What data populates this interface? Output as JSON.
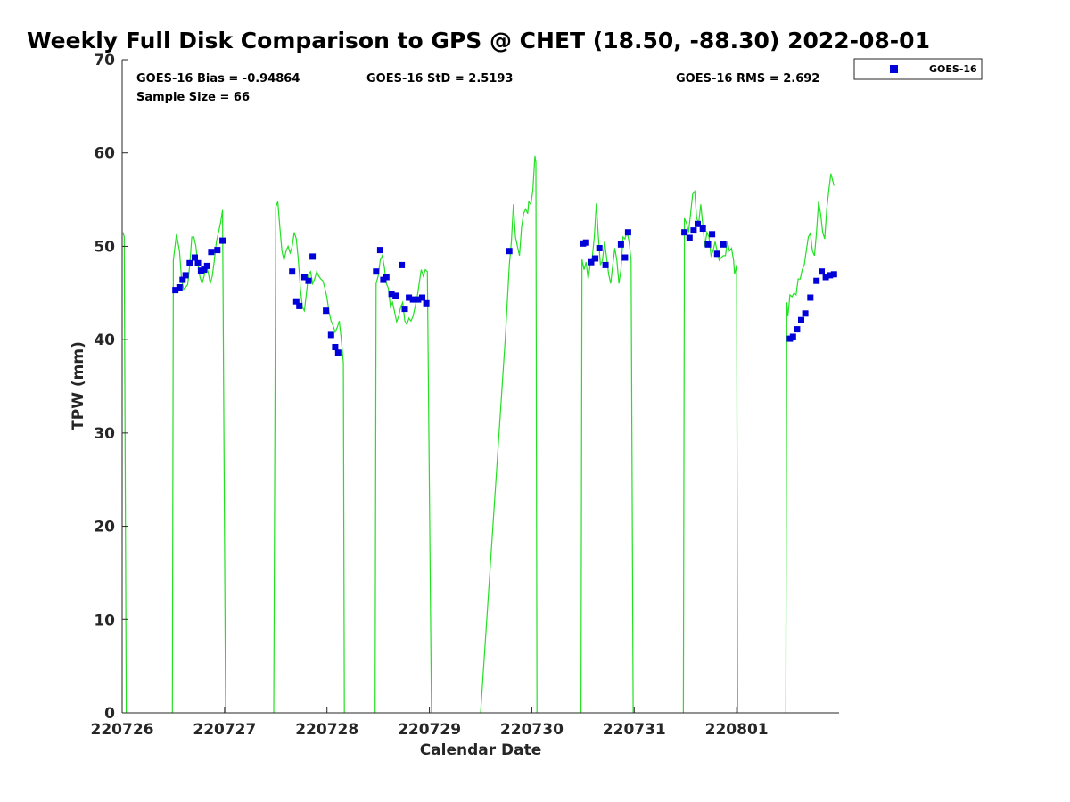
{
  "chart_data": {
    "type": "scatter",
    "title": "Weekly Full Disk Comparison to GPS @ CHET (18.50, -88.30) 2022-08-01",
    "xlabel": "Calendar Date",
    "ylabel": "TPW (mm)",
    "xlim": [
      0,
      7.0
    ],
    "ylim": [
      0,
      70
    ],
    "x_ticks": [
      {
        "value": 0,
        "label": "220726"
      },
      {
        "value": 1,
        "label": "220727"
      },
      {
        "value": 2,
        "label": "220728"
      },
      {
        "value": 3,
        "label": "220729"
      },
      {
        "value": 4,
        "label": "220730"
      },
      {
        "value": 5,
        "label": "220731"
      },
      {
        "value": 6,
        "label": "220801"
      }
    ],
    "y_ticks": [
      {
        "value": 0,
        "label": "0"
      },
      {
        "value": 10,
        "label": "10"
      },
      {
        "value": 20,
        "label": "20"
      },
      {
        "value": 30,
        "label": "30"
      },
      {
        "value": 40,
        "label": "40"
      },
      {
        "value": 50,
        "label": "50"
      },
      {
        "value": 60,
        "label": "60"
      },
      {
        "value": 70,
        "label": "70"
      }
    ],
    "stats": {
      "bias": "GOES-16 Bias = -0.94864",
      "std": "GOES-16 StD = 2.5193",
      "rms": "GOES-16 RMS = 2.692",
      "sample": "Sample Size = 66"
    },
    "legend": {
      "position": "top-right",
      "label": "GOES-16"
    },
    "colors": {
      "goes": "#0000d8",
      "gps": "#22e022",
      "axis": "#262626"
    },
    "gps_series": {
      "name": "GPS",
      "segments": [
        [
          [
            -0.02,
            51.5
          ],
          [
            0.02,
            51.0
          ],
          [
            0.04,
            0
          ]
        ],
        [
          [
            0.49,
            0
          ],
          [
            0.5,
            48.5
          ],
          [
            0.53,
            51.3
          ],
          [
            0.56,
            49.5
          ],
          [
            0.58,
            46.5
          ],
          [
            0.6,
            45.4
          ],
          [
            0.62,
            45.6
          ],
          [
            0.64,
            45.9
          ],
          [
            0.66,
            48.0
          ],
          [
            0.68,
            51.0
          ],
          [
            0.7,
            51.0
          ],
          [
            0.72,
            50.0
          ],
          [
            0.74,
            48.0
          ],
          [
            0.76,
            46.7
          ],
          [
            0.78,
            46.0
          ],
          [
            0.8,
            46.8
          ],
          [
            0.82,
            48.0
          ],
          [
            0.84,
            47.2
          ],
          [
            0.86,
            46.0
          ],
          [
            0.88,
            46.8
          ],
          [
            0.9,
            48.5
          ],
          [
            0.92,
            50.5
          ],
          [
            0.94,
            51.5
          ],
          [
            0.96,
            52.5
          ],
          [
            0.98,
            53.9
          ],
          [
            1.01,
            0
          ]
        ],
        [
          [
            1.48,
            0
          ],
          [
            1.5,
            54.2
          ],
          [
            1.52,
            54.8
          ],
          [
            1.54,
            52.0
          ],
          [
            1.56,
            49.5
          ],
          [
            1.58,
            48.5
          ],
          [
            1.6,
            49.5
          ],
          [
            1.62,
            50.0
          ],
          [
            1.64,
            49.3
          ],
          [
            1.66,
            50.0
          ],
          [
            1.68,
            51.5
          ],
          [
            1.7,
            50.8
          ],
          [
            1.72,
            48.5
          ],
          [
            1.74,
            45.5
          ],
          [
            1.76,
            43.5
          ],
          [
            1.78,
            43.1
          ],
          [
            1.8,
            45.0
          ],
          [
            1.82,
            47.0
          ],
          [
            1.84,
            47.3
          ],
          [
            1.86,
            46.0
          ],
          [
            1.88,
            46.5
          ],
          [
            1.9,
            47.3
          ],
          [
            1.92,
            46.8
          ],
          [
            1.94,
            46.5
          ],
          [
            1.96,
            46.3
          ],
          [
            1.98,
            45.5
          ],
          [
            2.0,
            44.5
          ],
          [
            2.02,
            43.0
          ],
          [
            2.04,
            42.0
          ],
          [
            2.06,
            41.5
          ],
          [
            2.08,
            40.8
          ],
          [
            2.1,
            41.3
          ],
          [
            2.12,
            42.0
          ],
          [
            2.14,
            40.0
          ],
          [
            2.16,
            37.5
          ],
          [
            2.17,
            0
          ]
        ],
        [
          [
            2.47,
            0
          ],
          [
            2.48,
            46.0
          ],
          [
            2.5,
            46.8
          ],
          [
            2.52,
            48.5
          ],
          [
            2.54,
            49.0
          ],
          [
            2.56,
            47.8
          ],
          [
            2.58,
            46.0
          ],
          [
            2.6,
            45.5
          ],
          [
            2.62,
            43.5
          ],
          [
            2.64,
            44.0
          ],
          [
            2.66,
            43.0
          ],
          [
            2.68,
            41.9
          ],
          [
            2.7,
            42.5
          ],
          [
            2.72,
            43.5
          ],
          [
            2.74,
            44.0
          ],
          [
            2.76,
            42.0
          ],
          [
            2.78,
            41.6
          ],
          [
            2.8,
            42.3
          ],
          [
            2.82,
            42.0
          ],
          [
            2.84,
            42.5
          ],
          [
            2.86,
            43.5
          ],
          [
            2.88,
            44.5
          ],
          [
            2.9,
            46.0
          ],
          [
            2.92,
            47.5
          ],
          [
            2.94,
            46.8
          ],
          [
            2.96,
            47.5
          ],
          [
            2.98,
            47.3
          ],
          [
            3.02,
            0
          ]
        ],
        [
          [
            3.5,
            0
          ],
          [
            3.62,
            20.0
          ],
          [
            3.74,
            40.0
          ],
          [
            3.78,
            48.0
          ],
          [
            3.8,
            50.5
          ],
          [
            3.82,
            54.5
          ],
          [
            3.84,
            51.0
          ],
          [
            3.86,
            50.0
          ],
          [
            3.88,
            49.0
          ],
          [
            3.9,
            52.0
          ],
          [
            3.92,
            53.5
          ],
          [
            3.94,
            54.0
          ],
          [
            3.96,
            53.5
          ],
          [
            3.97,
            54.8
          ],
          [
            3.99,
            54.5
          ],
          [
            4.01,
            56.0
          ],
          [
            4.03,
            59.7
          ],
          [
            4.04,
            59.0
          ],
          [
            4.05,
            0
          ]
        ],
        [
          [
            4.48,
            0
          ],
          [
            4.49,
            48.6
          ],
          [
            4.51,
            47.5
          ],
          [
            4.53,
            48.3
          ],
          [
            4.55,
            46.5
          ],
          [
            4.57,
            48.0
          ],
          [
            4.59,
            48.8
          ],
          [
            4.61,
            51.0
          ],
          [
            4.63,
            54.6
          ],
          [
            4.65,
            51.0
          ],
          [
            4.67,
            48.0
          ],
          [
            4.69,
            48.5
          ],
          [
            4.71,
            50.5
          ],
          [
            4.73,
            48.8
          ],
          [
            4.75,
            47.0
          ],
          [
            4.77,
            46.0
          ],
          [
            4.79,
            48.0
          ],
          [
            4.81,
            49.8
          ],
          [
            4.83,
            48.5
          ],
          [
            4.85,
            46.0
          ],
          [
            4.87,
            47.5
          ],
          [
            4.89,
            51.0
          ],
          [
            4.91,
            50.8
          ],
          [
            4.93,
            51.6
          ],
          [
            4.95,
            50.5
          ],
          [
            4.97,
            48.5
          ],
          [
            4.99,
            0
          ]
        ],
        [
          [
            5.48,
            0
          ],
          [
            5.49,
            53.0
          ],
          [
            5.51,
            52.5
          ],
          [
            5.53,
            51.5
          ],
          [
            5.55,
            53.5
          ],
          [
            5.57,
            55.6
          ],
          [
            5.59,
            55.9
          ],
          [
            5.61,
            53.0
          ],
          [
            5.63,
            52.5
          ],
          [
            5.65,
            54.5
          ],
          [
            5.67,
            52.3
          ],
          [
            5.69,
            50.0
          ],
          [
            5.71,
            51.5
          ],
          [
            5.73,
            51.0
          ],
          [
            5.75,
            49.0
          ],
          [
            5.77,
            49.5
          ],
          [
            5.79,
            50.5
          ],
          [
            5.81,
            49.5
          ],
          [
            5.83,
            48.5
          ],
          [
            5.85,
            48.8
          ],
          [
            5.87,
            49.0
          ],
          [
            5.89,
            49.0
          ],
          [
            5.91,
            50.5
          ],
          [
            5.93,
            49.5
          ],
          [
            5.95,
            49.8
          ],
          [
            5.97,
            48.5
          ],
          [
            5.98,
            47.0
          ],
          [
            6.0,
            48.0
          ],
          [
            6.01,
            0
          ]
        ],
        [
          [
            6.48,
            0
          ],
          [
            6.49,
            44.0
          ],
          [
            6.5,
            42.5
          ],
          [
            6.52,
            44.8
          ],
          [
            6.54,
            44.6
          ],
          [
            6.56,
            45.0
          ],
          [
            6.58,
            44.8
          ],
          [
            6.6,
            46.5
          ],
          [
            6.62,
            46.5
          ],
          [
            6.64,
            47.5
          ],
          [
            6.66,
            48.0
          ],
          [
            6.68,
            49.5
          ],
          [
            6.7,
            51.0
          ],
          [
            6.72,
            51.4
          ],
          [
            6.74,
            49.5
          ],
          [
            6.76,
            49.0
          ],
          [
            6.78,
            51.5
          ],
          [
            6.8,
            54.8
          ],
          [
            6.82,
            53.5
          ],
          [
            6.84,
            51.5
          ],
          [
            6.86,
            50.8
          ],
          [
            6.88,
            54.0
          ],
          [
            6.9,
            56.0
          ],
          [
            6.92,
            57.8
          ],
          [
            6.95,
            56.5
          ]
        ]
      ]
    },
    "goes_series": {
      "name": "GOES-16",
      "x": [
        0.52,
        0.56,
        0.59,
        0.62,
        0.66,
        0.71,
        0.74,
        0.77,
        0.8,
        0.83,
        0.87,
        0.93,
        0.98,
        1.66,
        1.7,
        1.73,
        1.78,
        1.82,
        1.86,
        1.99,
        2.04,
        2.08,
        2.11,
        2.48,
        2.52,
        2.55,
        2.58,
        2.63,
        2.67,
        2.73,
        2.76,
        2.8,
        2.84,
        2.89,
        2.93,
        2.97,
        3.78,
        4.5,
        4.53,
        4.58,
        4.62,
        4.66,
        4.72,
        4.87,
        4.91,
        4.94,
        5.49,
        5.54,
        5.58,
        5.62,
        5.67,
        5.72,
        5.76,
        5.81,
        5.87,
        6.52,
        6.55,
        6.59,
        6.63,
        6.67,
        6.72,
        6.78,
        6.83,
        6.87,
        6.91,
        6.95
      ],
      "y": [
        45.3,
        45.6,
        46.4,
        46.9,
        48.2,
        48.8,
        48.2,
        47.4,
        47.5,
        47.9,
        49.4,
        49.6,
        50.6,
        47.3,
        44.1,
        43.6,
        46.7,
        46.3,
        48.9,
        43.1,
        40.5,
        39.2,
        38.6,
        47.3,
        49.6,
        46.4,
        46.7,
        44.9,
        44.7,
        48.0,
        43.3,
        44.5,
        44.3,
        44.3,
        44.5,
        43.9,
        49.5,
        50.3,
        50.4,
        48.3,
        48.7,
        49.8,
        48.0,
        50.2,
        48.8,
        51.5,
        51.5,
        50.9,
        51.7,
        52.4,
        51.9,
        50.2,
        51.3,
        49.2,
        50.2,
        40.1,
        40.3,
        41.1,
        42.1,
        42.8,
        44.5,
        46.3,
        47.3,
        46.7,
        46.9,
        47.0
      ]
    }
  }
}
